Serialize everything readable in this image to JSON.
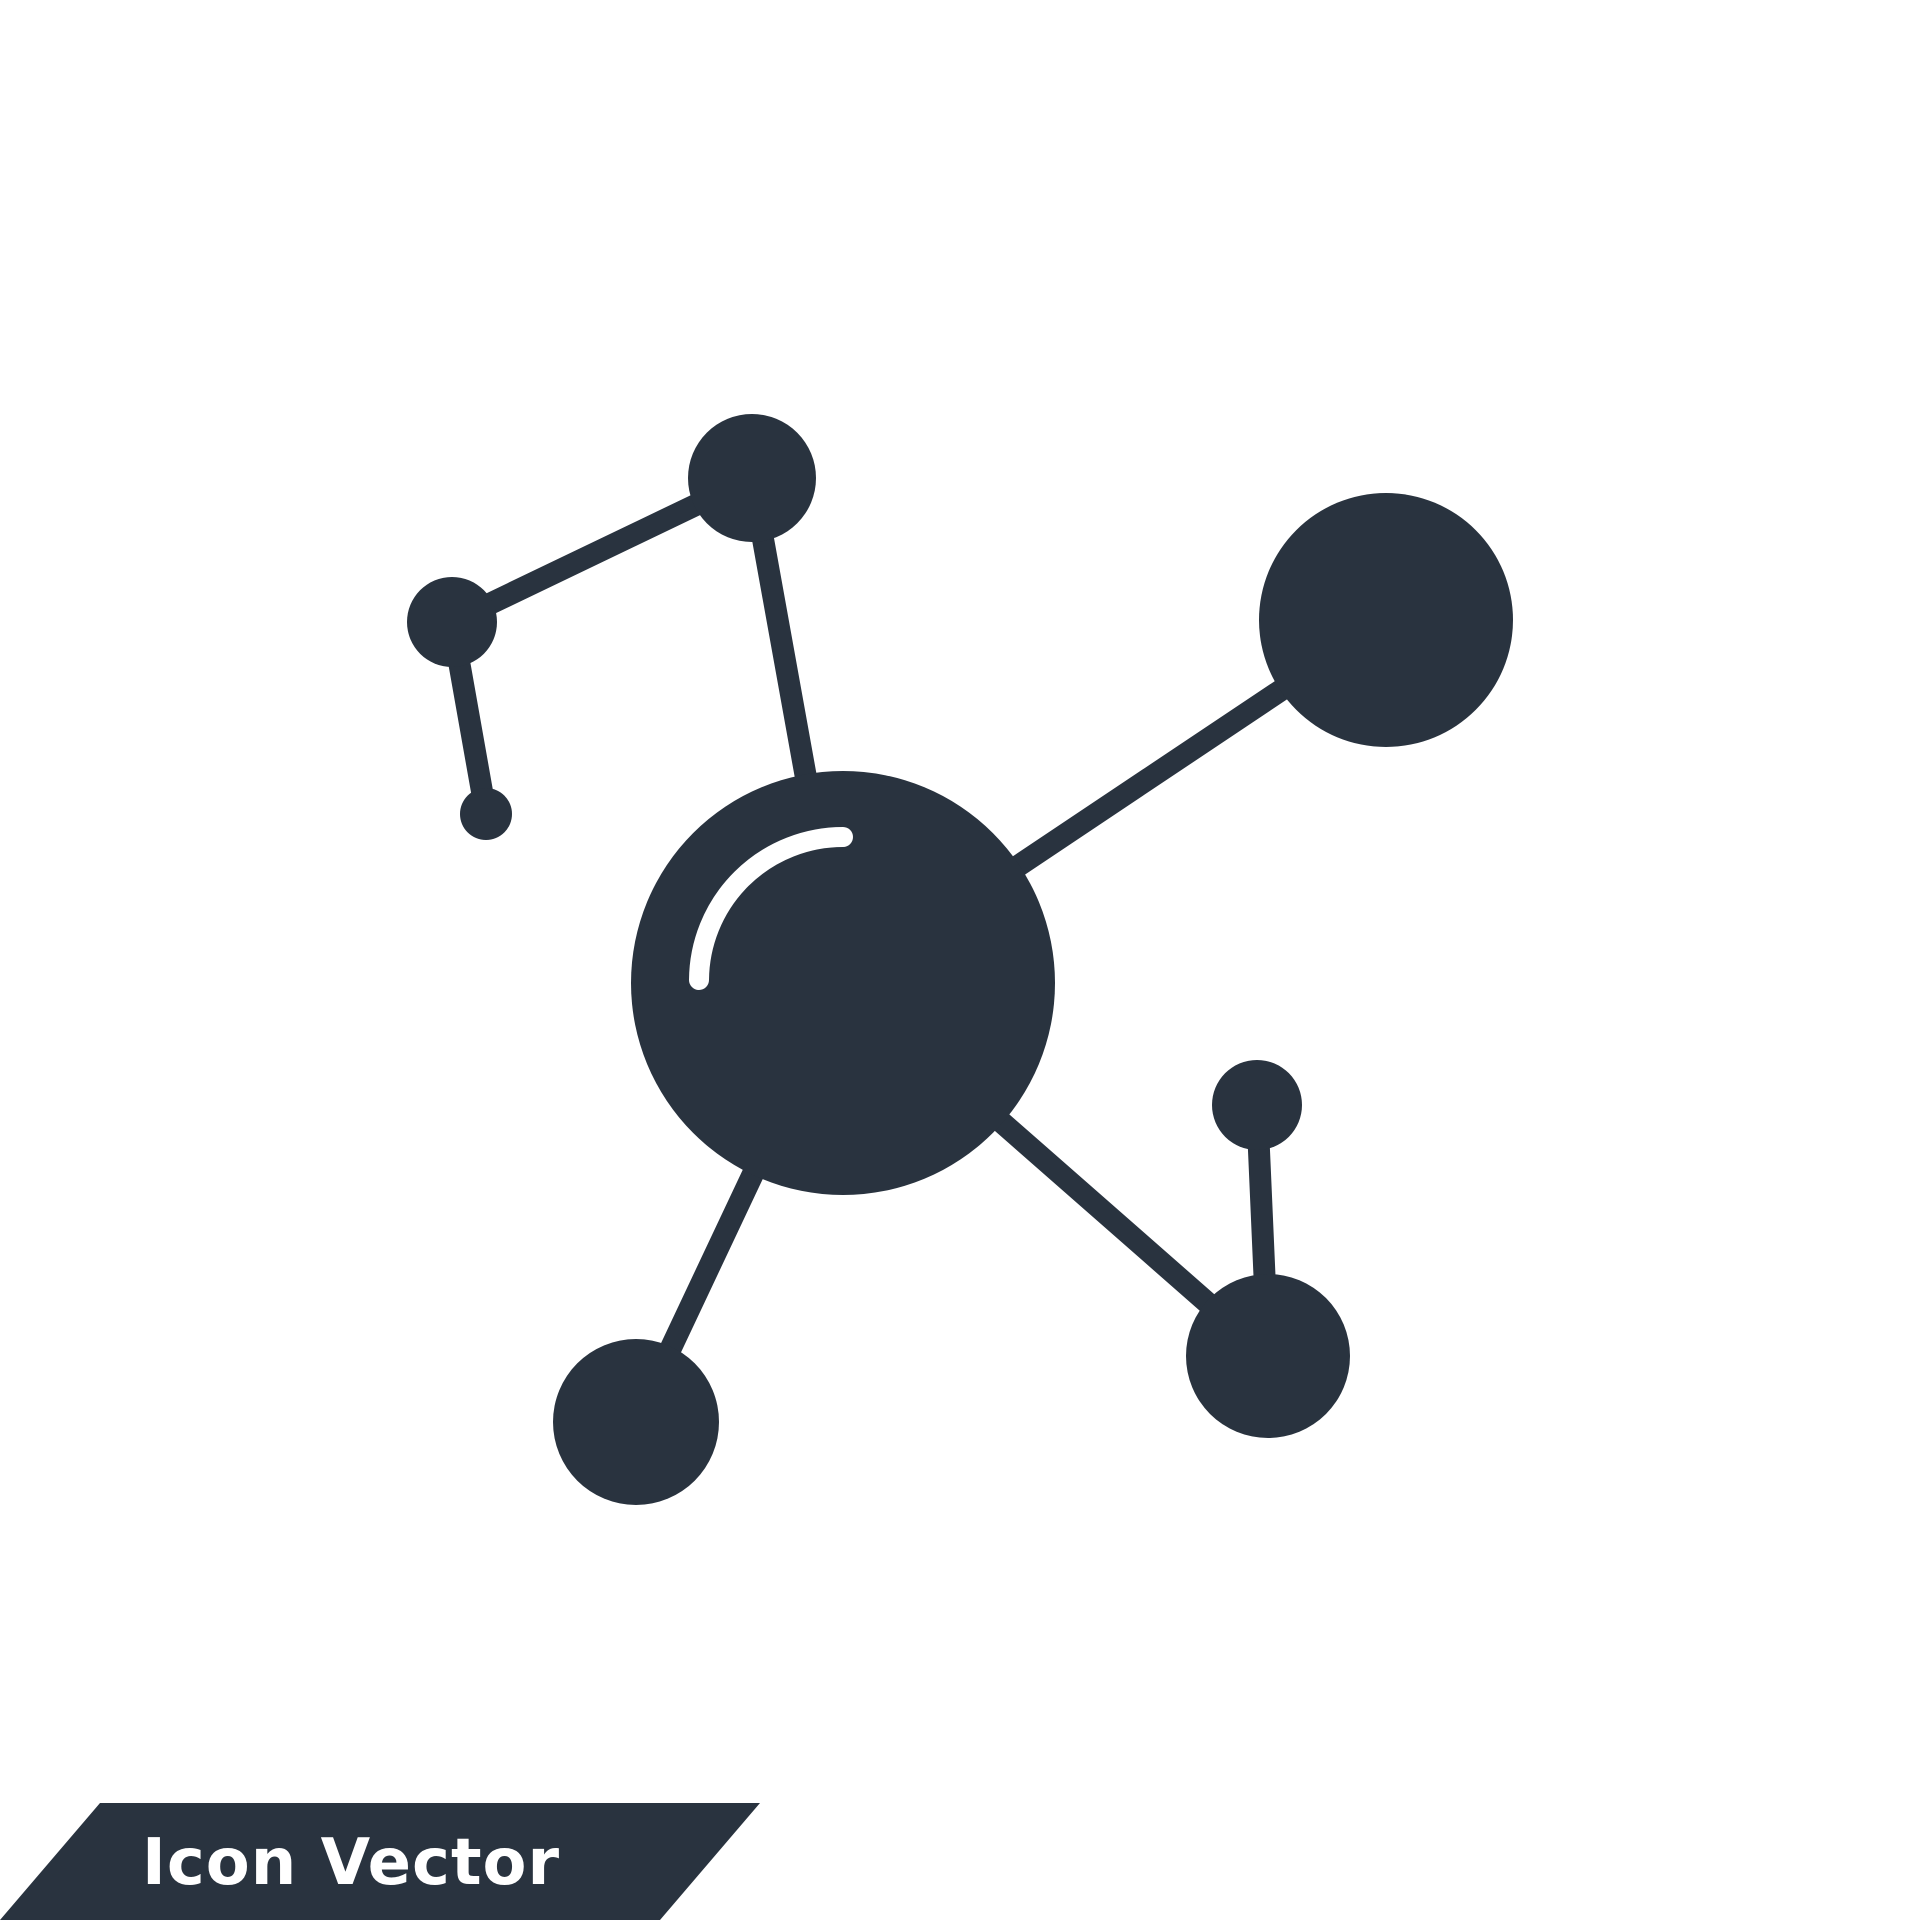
{
  "colors": {
    "ink": "#29333f",
    "background": "#ffffff",
    "banner_text": "#ffffff"
  },
  "icon": {
    "name": "molecule-icon"
  },
  "banner": {
    "label": "Icon Vector"
  }
}
